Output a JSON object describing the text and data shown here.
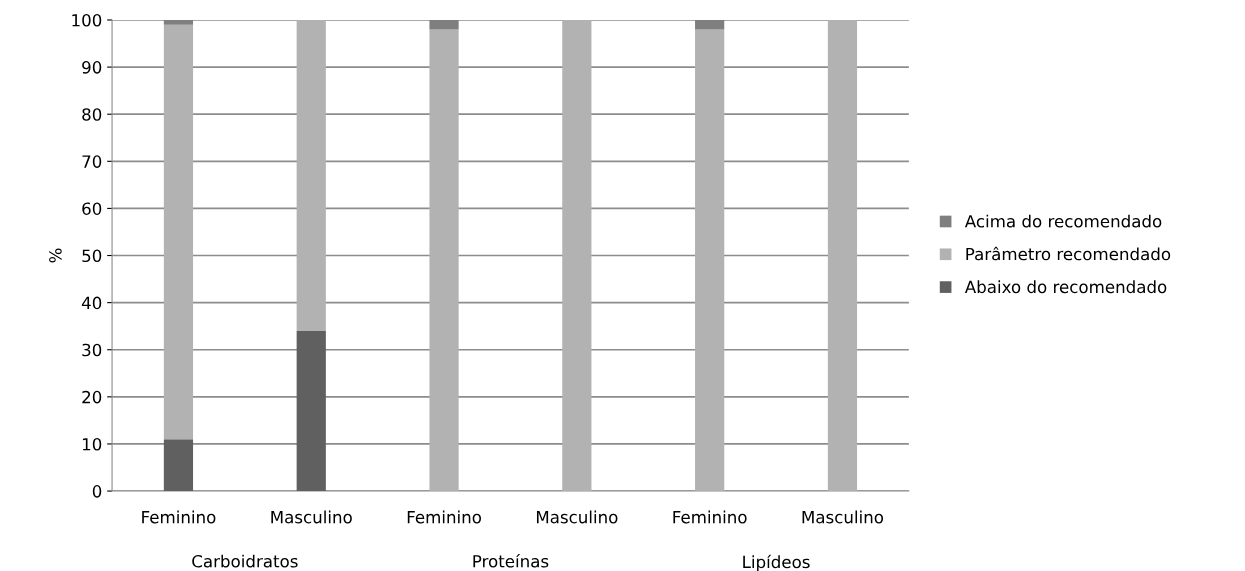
{
  "chart_data": {
    "type": "bar",
    "stacked": true,
    "ylabel": "%",
    "categories": [
      "Feminino",
      "Masculino",
      "Feminino",
      "Masculino",
      "Feminino",
      "Masculino"
    ],
    "annotations": [
      "Carboidratos",
      "Proteínas",
      "Lipídeos"
    ],
    "series": [
      {
        "name": "Abaixo do recomendado",
        "color": "#606060",
        "values": [
          11,
          34,
          0,
          0,
          0,
          0
        ]
      },
      {
        "name": "Parâmetro recomendado",
        "color": "#b2b2b2",
        "values": [
          88,
          66,
          98,
          100,
          98,
          100
        ]
      },
      {
        "name": "Acima do recomendado",
        "color": "#7f7f7f",
        "values": [
          1,
          0,
          2,
          0,
          2,
          0
        ]
      }
    ],
    "ylim": [
      0,
      100
    ],
    "yticks": [
      0,
      10,
      20,
      30,
      40,
      50,
      60,
      70,
      80,
      90,
      100
    ],
    "grid": "y",
    "legend": "right"
  }
}
